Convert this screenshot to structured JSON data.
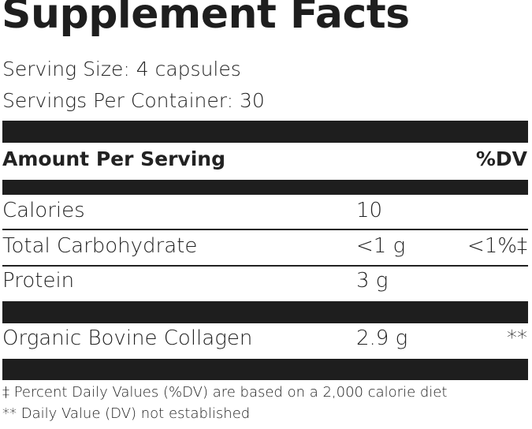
{
  "title": "Supplement Facts",
  "serving_size": "Serving Size: 4 capsules",
  "servings_per_container": "Servings Per Container: 30",
  "header": {
    "amount_label": "Amount Per Serving",
    "dv_label": "%DV"
  },
  "nutrients": [
    {
      "name": "Calories",
      "amount": "10",
      "dv": ""
    },
    {
      "name": "Total Carbohydrate",
      "amount": "<1 g",
      "dv": "<1%‡"
    },
    {
      "name": "Protein",
      "amount": "3 g",
      "dv": ""
    },
    {
      "name": "Organic Bovine Collagen",
      "amount": "2.9 g",
      "dv": "**"
    }
  ],
  "footnotes": [
    "‡ Percent Daily Values (%DV) are based on a 2,000 calorie diet",
    "** Daily Value (DV) not established"
  ]
}
